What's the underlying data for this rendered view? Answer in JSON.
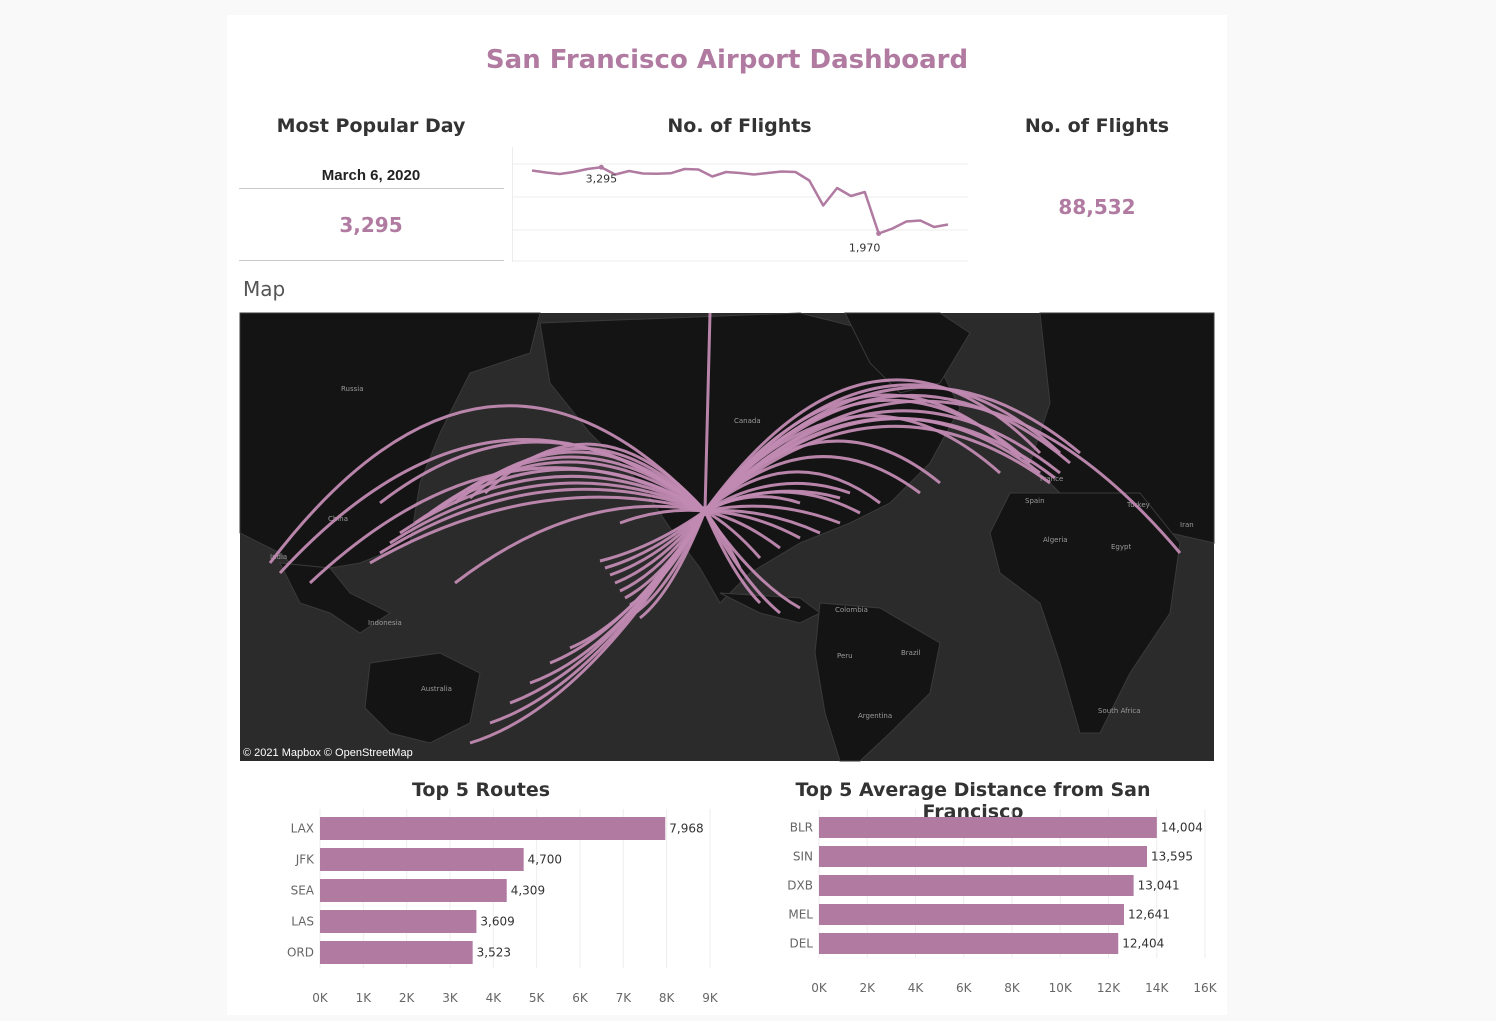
{
  "title": "San Francisco Airport Dashboard",
  "popular_day": {
    "heading": "Most Popular Day",
    "date": "March 6, 2020",
    "value": "3,295"
  },
  "trend": {
    "heading": "No. of Flights",
    "values": [
      3230,
      3190,
      3160,
      3200,
      3260,
      3295,
      3150,
      3220,
      3170,
      3165,
      3175,
      3260,
      3250,
      3110,
      3200,
      3180,
      3150,
      3180,
      3210,
      3200,
      3030,
      2530,
      2880,
      2720,
      2800,
      1970,
      2070,
      2210,
      2230,
      2100,
      2150
    ],
    "max_label": "3,295",
    "min_label": "1,970"
  },
  "total_flights": {
    "heading": "No. of Flights",
    "value": "88,532"
  },
  "map": {
    "label": "Map",
    "attribution": "© 2021 Mapbox © OpenStreetMap",
    "place_labels": [
      "Russia",
      "China",
      "India",
      "Indonesia",
      "Australia",
      "Canada",
      "Colombia",
      "Peru",
      "Brazil",
      "Argentina",
      "France",
      "Spain",
      "Turkey",
      "Iran",
      "Algeria",
      "Egypt",
      "South Africa"
    ]
  },
  "chart_data": [
    {
      "type": "bar",
      "title": "Top 5 Routes",
      "categories": [
        "LAX",
        "JFK",
        "SEA",
        "LAS",
        "ORD"
      ],
      "values": [
        7968,
        4700,
        4309,
        3609,
        3523
      ],
      "value_labels": [
        "7,968",
        "4,700",
        "4,309",
        "3,609",
        "3,523"
      ],
      "xlim": [
        0,
        9000
      ],
      "ticks": [
        0,
        1000,
        2000,
        3000,
        4000,
        5000,
        6000,
        7000,
        8000,
        9000
      ],
      "tick_labels": [
        "0K",
        "1K",
        "2K",
        "3K",
        "4K",
        "5K",
        "6K",
        "7K",
        "8K",
        "9K"
      ],
      "grid": true,
      "color": "#b07aa1"
    },
    {
      "type": "bar",
      "title": "Top 5 Average Distance from San Francisco",
      "categories": [
        "BLR",
        "SIN",
        "DXB",
        "MEL",
        "DEL"
      ],
      "values": [
        14004,
        13595,
        13041,
        12641,
        12404
      ],
      "value_labels": [
        "14,004",
        "13,595",
        "13,041",
        "12,641",
        "12,404"
      ],
      "xlim": [
        0,
        16000
      ],
      "ticks": [
        0,
        2000,
        4000,
        6000,
        8000,
        10000,
        12000,
        14000,
        16000
      ],
      "tick_labels": [
        "0K",
        "2K",
        "4K",
        "6K",
        "8K",
        "10K",
        "12K",
        "14K",
        "16K"
      ],
      "grid": true,
      "color": "#b07aa1"
    }
  ]
}
